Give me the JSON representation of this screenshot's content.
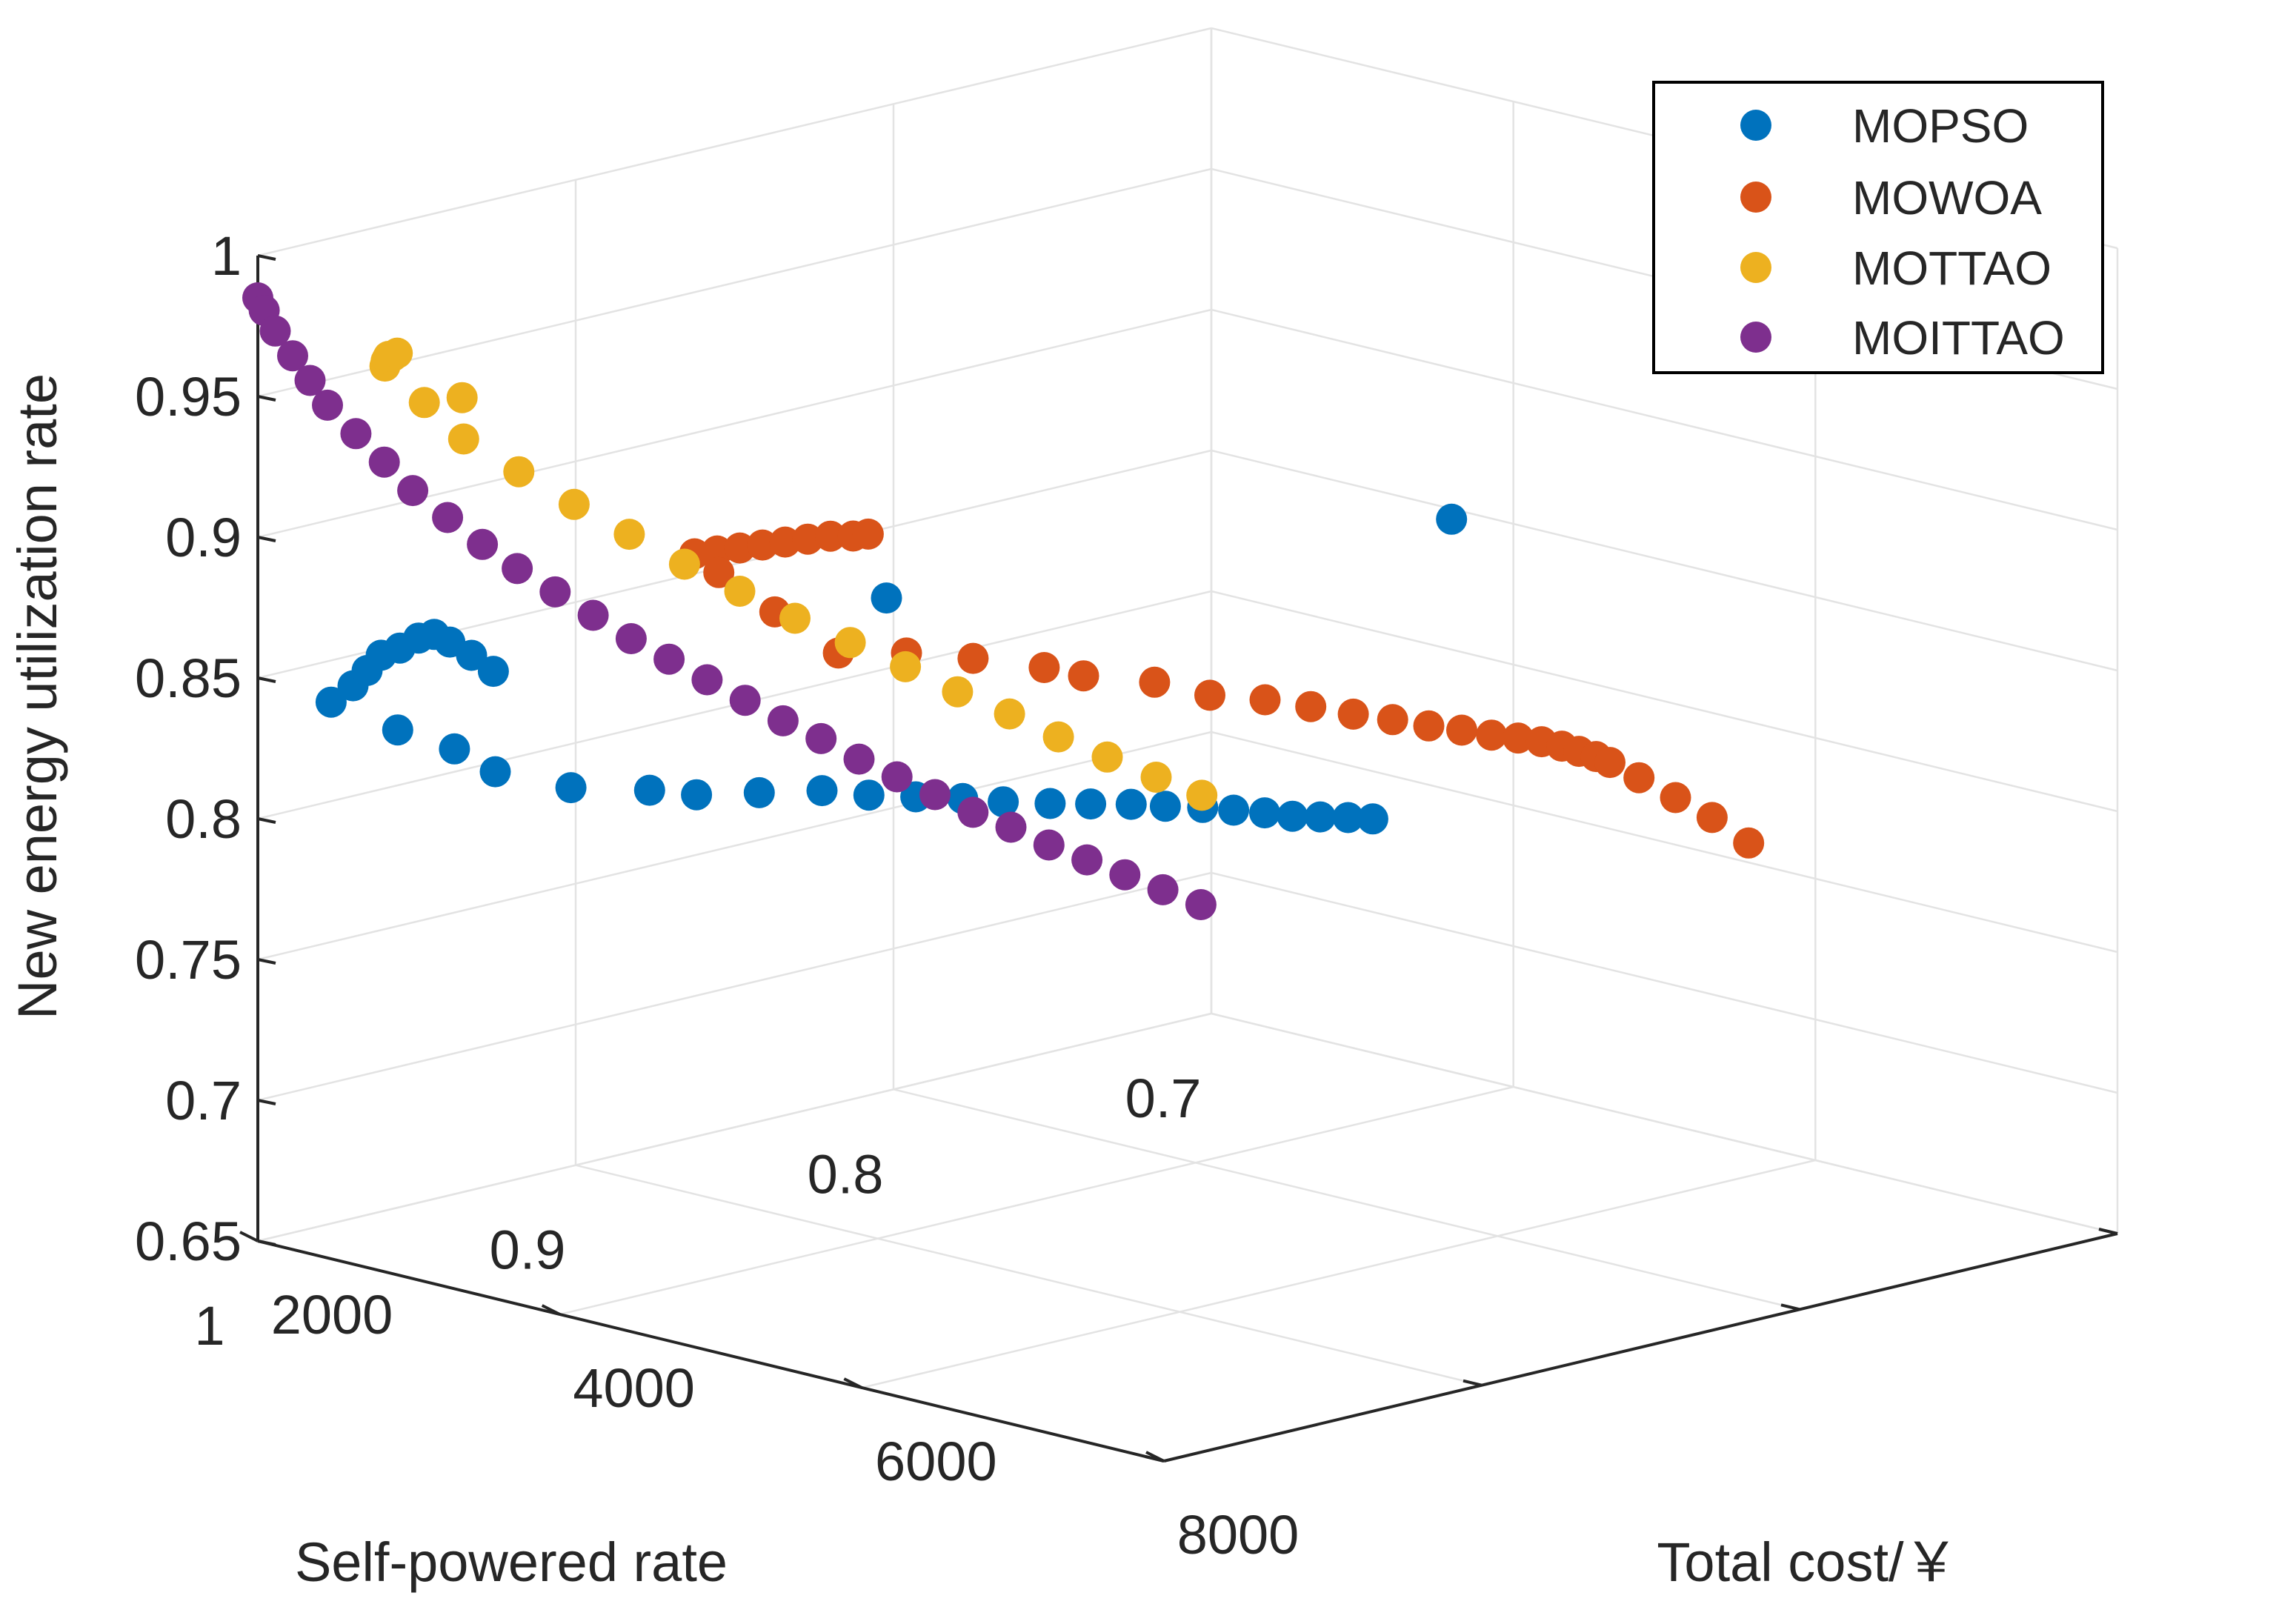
{
  "chart_data": {
    "type": "scatter3d",
    "title": "",
    "xlabel": "Total cost/￥",
    "ylabel": "Self-powered rate",
    "zlabel": "New energy utilization rate",
    "xlim": [
      2000,
      8000
    ],
    "ylim": [
      0.7,
      1
    ],
    "zlim": [
      0.65,
      1
    ],
    "xticks": [
      2000,
      4000,
      6000,
      8000
    ],
    "yticks": [
      0.7,
      0.8,
      0.9,
      1
    ],
    "zticks": [
      0.65,
      0.7,
      0.75,
      0.8,
      0.85,
      0.9,
      0.95,
      1
    ],
    "xtick_labels": [
      "2000",
      "4000",
      "6000",
      "8000"
    ],
    "ytick_labels": [
      "0.7",
      "0.8",
      "0.9",
      "1"
    ],
    "ztick_labels": [
      "0.65",
      "0.7",
      "0.75",
      "0.8",
      "0.85",
      "0.9",
      "0.95",
      "1"
    ],
    "grid": true,
    "legend_position": "top-right",
    "series": [
      {
        "name": "MOPSO",
        "color": "#0072BD",
        "points": [
          [
            2380,
            0.995,
            0.845
          ],
          [
            2420,
            0.99,
            0.85
          ],
          [
            2450,
            0.987,
            0.855
          ],
          [
            2480,
            0.984,
            0.86
          ],
          [
            2520,
            0.98,
            0.862
          ],
          [
            2560,
            0.976,
            0.865
          ],
          [
            2600,
            0.973,
            0.866
          ],
          [
            2640,
            0.97,
            0.863
          ],
          [
            2700,
            0.966,
            0.858
          ],
          [
            2760,
            0.962,
            0.852
          ],
          [
            2400,
            0.975,
            0.83
          ],
          [
            2460,
            0.96,
            0.82
          ],
          [
            2520,
            0.95,
            0.81
          ],
          [
            2600,
            0.93,
            0.8
          ],
          [
            2700,
            0.91,
            0.795
          ],
          [
            2800,
            0.9,
            0.792
          ],
          [
            2900,
            0.885,
            0.79
          ],
          [
            3000,
            0.87,
            0.788
          ],
          [
            3100,
            0.86,
            0.785
          ],
          [
            3200,
            0.85,
            0.783
          ],
          [
            3300,
            0.84,
            0.781
          ],
          [
            3400,
            0.832,
            0.779
          ],
          [
            3500,
            0.822,
            0.777
          ],
          [
            3600,
            0.814,
            0.776
          ],
          [
            3700,
            0.806,
            0.775
          ],
          [
            3800,
            0.8,
            0.774
          ],
          [
            3900,
            0.793,
            0.773
          ],
          [
            4000,
            0.788,
            0.772
          ],
          [
            4100,
            0.783,
            0.771
          ],
          [
            4200,
            0.779,
            0.77
          ],
          [
            4300,
            0.775,
            0.77
          ],
          [
            4400,
            0.771,
            0.77
          ],
          [
            4500,
            0.768,
            0.77
          ],
          [
            4900,
            0.94,
            0.9
          ],
          [
            7800,
            0.9,
            0.955
          ]
        ]
      },
      {
        "name": "MOWOA",
        "color": "#D95319",
        "points": [
          [
            4050,
            0.96,
            0.91
          ],
          [
            4200,
            0.96,
            0.913
          ],
          [
            4350,
            0.96,
            0.916
          ],
          [
            4500,
            0.96,
            0.919
          ],
          [
            4650,
            0.96,
            0.922
          ],
          [
            4800,
            0.96,
            0.925
          ],
          [
            4950,
            0.96,
            0.928
          ],
          [
            5100,
            0.96,
            0.93
          ],
          [
            5200,
            0.96,
            0.932
          ],
          [
            4000,
            0.95,
            0.9
          ],
          [
            3950,
            0.93,
            0.88
          ],
          [
            3950,
            0.91,
            0.86
          ],
          [
            3980,
            0.89,
            0.855
          ],
          [
            4000,
            0.87,
            0.848
          ],
          [
            4050,
            0.85,
            0.84
          ],
          [
            4100,
            0.84,
            0.835
          ],
          [
            4150,
            0.82,
            0.828
          ],
          [
            4200,
            0.805,
            0.82
          ],
          [
            4250,
            0.79,
            0.815
          ],
          [
            4300,
            0.778,
            0.81
          ],
          [
            4350,
            0.767,
            0.805
          ],
          [
            4400,
            0.757,
            0.801
          ],
          [
            4450,
            0.748,
            0.797
          ],
          [
            4500,
            0.74,
            0.794
          ],
          [
            4550,
            0.733,
            0.791
          ],
          [
            4600,
            0.727,
            0.789
          ],
          [
            4650,
            0.722,
            0.787
          ],
          [
            4700,
            0.718,
            0.785
          ],
          [
            4750,
            0.715,
            0.783
          ],
          [
            4800,
            0.712,
            0.781
          ],
          [
            4850,
            0.71,
            0.779
          ],
          [
            5000,
            0.708,
            0.775
          ],
          [
            5200,
            0.706,
            0.77
          ],
          [
            5400,
            0.704,
            0.765
          ],
          [
            5600,
            0.702,
            0.758
          ]
        ]
      },
      {
        "name": "MOTTAO",
        "color": "#EDB120",
        "points": [
          [
            2000,
            0.96,
            0.95
          ],
          [
            2050,
            0.962,
            0.953
          ],
          [
            2100,
            0.964,
            0.955
          ],
          [
            2150,
            0.966,
            0.957
          ],
          [
            2200,
            0.967,
            0.958
          ],
          [
            2250,
            0.968,
            0.96
          ],
          [
            2300,
            0.95,
            0.94
          ],
          [
            2050,
            0.95,
            0.935
          ],
          [
            2100,
            0.94,
            0.92
          ],
          [
            2150,
            0.925,
            0.905
          ],
          [
            2200,
            0.91,
            0.89
          ],
          [
            2250,
            0.895,
            0.876
          ],
          [
            2300,
            0.88,
            0.862
          ],
          [
            2350,
            0.865,
            0.849
          ],
          [
            2400,
            0.85,
            0.836
          ],
          [
            2450,
            0.835,
            0.824
          ],
          [
            2500,
            0.82,
            0.812
          ],
          [
            2550,
            0.806,
            0.8
          ],
          [
            2600,
            0.792,
            0.789
          ],
          [
            2650,
            0.779,
            0.778
          ],
          [
            2700,
            0.766,
            0.768
          ],
          [
            2750,
            0.753,
            0.758
          ],
          [
            2800,
            0.741,
            0.749
          ]
        ]
      },
      {
        "name": "MOITTAO",
        "color": "#7E2F8E",
        "points": [
          [
            2000,
            1.0,
            0.985
          ],
          [
            2000,
            0.998,
            0.98
          ],
          [
            2010,
            0.995,
            0.972
          ],
          [
            2020,
            0.99,
            0.962
          ],
          [
            2030,
            0.985,
            0.952
          ],
          [
            2040,
            0.98,
            0.942
          ],
          [
            2060,
            0.972,
            0.93
          ],
          [
            2080,
            0.964,
            0.918
          ],
          [
            2100,
            0.956,
            0.906
          ],
          [
            2120,
            0.946,
            0.894
          ],
          [
            2140,
            0.936,
            0.882
          ],
          [
            2160,
            0.926,
            0.871
          ],
          [
            2180,
            0.915,
            0.86
          ],
          [
            2200,
            0.904,
            0.849
          ],
          [
            2220,
            0.893,
            0.838
          ],
          [
            2240,
            0.882,
            0.828
          ],
          [
            2260,
            0.871,
            0.818
          ],
          [
            2280,
            0.86,
            0.808
          ],
          [
            2300,
            0.849,
            0.798
          ],
          [
            2320,
            0.838,
            0.789
          ],
          [
            2340,
            0.827,
            0.779
          ],
          [
            2360,
            0.816,
            0.77
          ],
          [
            2380,
            0.805,
            0.761
          ],
          [
            2400,
            0.794,
            0.752
          ],
          [
            2420,
            0.783,
            0.744
          ],
          [
            2440,
            0.772,
            0.735
          ],
          [
            2460,
            0.761,
            0.727
          ],
          [
            2480,
            0.75,
            0.719
          ],
          [
            2500,
            0.739,
            0.711
          ],
          [
            2520,
            0.728,
            0.703
          ]
        ]
      }
    ]
  }
}
